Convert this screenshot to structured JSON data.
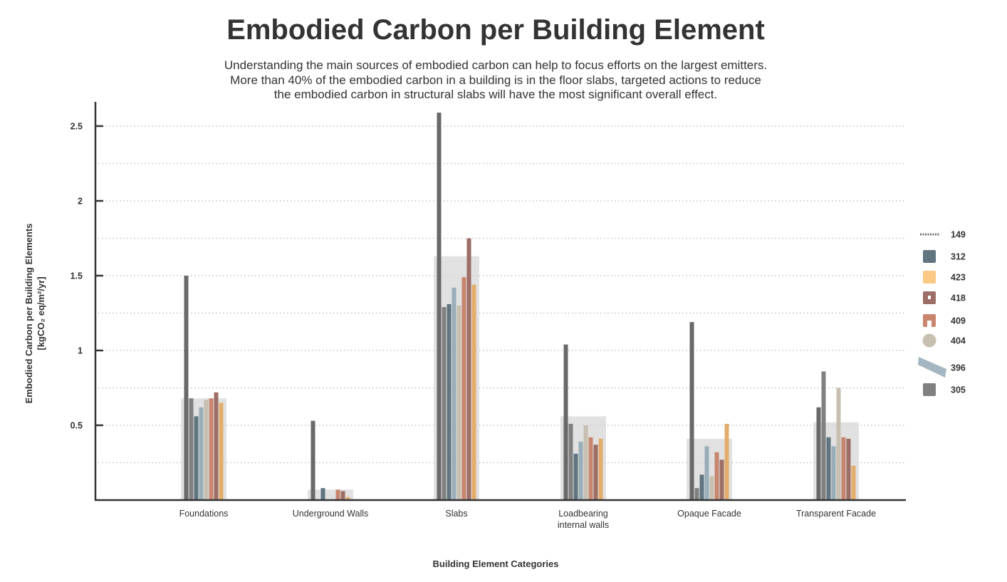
{
  "chart_data": {
    "type": "bar",
    "title": "Embodied Carbon per Building Element",
    "subtitle": [
      "Understanding the main sources of embodied carbon can help to focus efforts on the largest emitters.",
      "More than 40% of the embodied carbon in a building is in the floor slabs, targeted actions to reduce",
      "the embodied carbon in structural slabs will have the most significant overall effect."
    ],
    "xlabel": "Building Element Categories",
    "ylabel": [
      "Embodied Carbon per Building Elements",
      "[kgCO₂ eq/m²/yr]"
    ],
    "ylim": [
      0,
      2.6
    ],
    "yticks": [
      0.5,
      1,
      1.5,
      2,
      2.5
    ],
    "ytick_labels": [
      "0.5",
      "1",
      "1.5",
      "2",
      "2.5"
    ],
    "grid": true,
    "legend_position": "right",
    "categories": [
      [
        "Foundations"
      ],
      [
        "Underground Walls"
      ],
      [
        "Slabs"
      ],
      [
        "Loadbearing",
        "internal walls"
      ],
      [
        "Opaque Facade"
      ],
      [
        "Transparent Facade"
      ]
    ],
    "average_values": [
      0.68,
      0.07,
      1.63,
      0.56,
      0.41,
      0.52
    ],
    "series": [
      {
        "name": "149",
        "color": "#696969",
        "values": [
          1.5,
          0.53,
          2.59,
          1.04,
          1.19,
          0.62
        ]
      },
      {
        "name": "305",
        "color": "#808080",
        "values": [
          0.68,
          0.0,
          1.29,
          0.51,
          0.08,
          0.86
        ]
      },
      {
        "name": "312",
        "color": "#607580",
        "values": [
          0.56,
          0.08,
          1.31,
          0.31,
          0.17,
          0.42
        ]
      },
      {
        "name": "396",
        "color": "#99aeb8",
        "values": [
          0.62,
          0.0,
          1.42,
          0.39,
          0.36,
          0.36
        ]
      },
      {
        "name": "404",
        "color": "#c7bfb0",
        "values": [
          0.67,
          0.0,
          1.3,
          0.5,
          0.16,
          0.75
        ]
      },
      {
        "name": "409",
        "color": "#c8866f",
        "values": [
          0.68,
          0.07,
          1.49,
          0.42,
          0.32,
          0.42
        ]
      },
      {
        "name": "418",
        "color": "#9c6e66",
        "values": [
          0.72,
          0.06,
          1.75,
          0.37,
          0.27,
          0.41
        ]
      },
      {
        "name": "423",
        "color": "#e3ad6b",
        "values": [
          0.65,
          0.02,
          1.44,
          0.41,
          0.51,
          0.23
        ]
      }
    ],
    "legend": [
      {
        "label": "149",
        "color": "#707070",
        "icon": "line-icon"
      },
      {
        "label": "312",
        "color": "#607580",
        "icon": "shape-icon"
      },
      {
        "label": "423",
        "color": "#fbc984",
        "icon": "shape-icon"
      },
      {
        "label": "418",
        "color": "#9c6e66",
        "icon": "shape-icon"
      },
      {
        "label": "409",
        "color": "#c8866f",
        "icon": "shape-icon"
      },
      {
        "label": "404",
        "color": "#c7bfb0",
        "icon": "circle-icon"
      },
      {
        "label": "396",
        "color": "#a4b6bf",
        "icon": "shape-icon"
      },
      {
        "label": "305",
        "color": "#808080",
        "icon": "shape-icon"
      }
    ]
  }
}
